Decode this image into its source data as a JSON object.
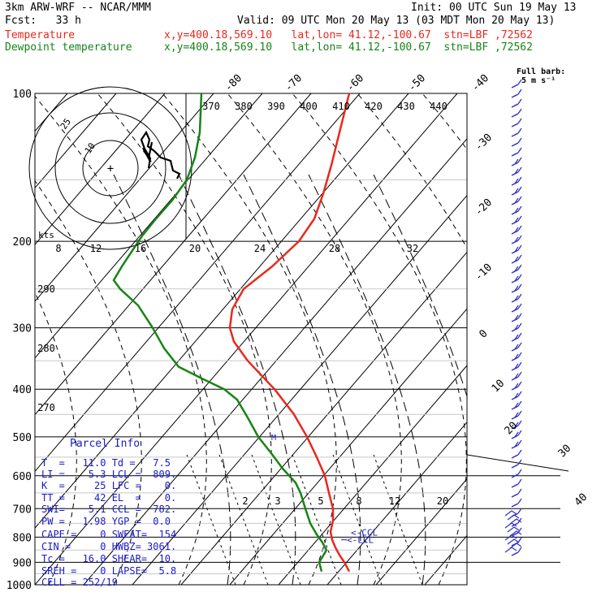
{
  "header": {
    "model": "3km ARW-WRF -- NCAR/MMM",
    "init": "Init: 00 UTC Sun 19 May 13",
    "fcst": "Fcst:   33 h",
    "valid": "Valid: 09 UTC Mon 20 May 13 (03 MDT Mon 20 May 13)",
    "temp_label": "Temperature",
    "temp_info": "x,y=400.18,569.10   lat,lon= 41.12,-100.67  stn=LBF ,72562",
    "dew_label": "Dewpoint temperature",
    "dew_info": "x,y=400.18,569.10   lat,lon= 41.12,-100.67  stn=LBF ,72562",
    "barb_key_1": "Full barb:",
    "barb_key_2": "5 m s⁻¹"
  },
  "colors": {
    "temperature": "#e8281e",
    "dewpoint": "#168416",
    "parcel": "#1a1ac8",
    "barb": "#3434c8",
    "hodograph": "#000000"
  },
  "parcel_info": {
    "title": "Parcel Info",
    "rows": [
      "T  =   11.0 Td =   7.5",
      "LI =    5.3 LCL =  809.",
      "K  =     25 LFC =    0.",
      "TT =     42 EL  =    0.",
      "SWI=    5.1 CCL =  782.",
      "PW =   1.98 YGP =  0.0",
      "CAPE =    0 SWEAT=  154",
      "CIN =     0 HWBZ= 3061.",
      "Tc =   16.0 SHEAR=  10.",
      "SREH =    0 LAPSE=  5.8",
      "CELL = 252/19"
    ]
  },
  "hodograph": {
    "unit_label": "kts",
    "ring_labels": [
      "25",
      "10"
    ]
  },
  "markers": {
    "lcl": "<-LCL",
    "ccl": "<-CCL",
    "ml": "M"
  },
  "chart_data": {
    "type": "line",
    "title": "",
    "xlabel": "",
    "ylabel": "",
    "y_scale": "log pressure (hPa)",
    "ylim": [
      1000,
      100
    ],
    "pressure_ticks": [
      100,
      200,
      300,
      400,
      500,
      600,
      700,
      800,
      900,
      1000
    ],
    "isotherm_labels_top": [
      -80,
      -70,
      -60,
      -50,
      -40
    ],
    "isotherm_labels_right": [
      -30,
      -20,
      -10,
      0,
      10,
      20,
      30,
      40
    ],
    "theta_labels": [
      370,
      380,
      390,
      400,
      410,
      420,
      430,
      440
    ],
    "theta_labels_left": [
      290,
      280,
      270
    ],
    "hodo_speed_labels": [
      8,
      12,
      16,
      20,
      24,
      28,
      32
    ],
    "mixing_ratio_labels": [
      2,
      3,
      5,
      8,
      12,
      20
    ],
    "series": [
      {
        "name": "Temperature",
        "points": [
          {
            "p": 940,
            "x": 430
          },
          {
            "p": 900,
            "x": 424
          },
          {
            "p": 870,
            "x": 418
          },
          {
            "p": 840,
            "x": 413
          },
          {
            "p": 810,
            "x": 409
          },
          {
            "p": 780,
            "x": 407
          },
          {
            "p": 740,
            "x": 410
          },
          {
            "p": 700,
            "x": 410
          },
          {
            "p": 650,
            "x": 405
          },
          {
            "p": 600,
            "x": 400
          },
          {
            "p": 550,
            "x": 390
          },
          {
            "p": 500,
            "x": 378
          },
          {
            "p": 450,
            "x": 362
          },
          {
            "p": 400,
            "x": 338
          },
          {
            "p": 350,
            "x": 305
          },
          {
            "p": 320,
            "x": 288
          },
          {
            "p": 300,
            "x": 283
          },
          {
            "p": 275,
            "x": 286
          },
          {
            "p": 250,
            "x": 300
          },
          {
            "p": 225,
            "x": 335
          },
          {
            "p": 200,
            "x": 368
          },
          {
            "p": 180,
            "x": 387
          },
          {
            "p": 160,
            "x": 398
          },
          {
            "p": 140,
            "x": 408
          },
          {
            "p": 120,
            "x": 418
          },
          {
            "p": 100,
            "x": 430
          }
        ]
      },
      {
        "name": "Dewpoint temperature",
        "points": [
          {
            "p": 940,
            "x": 396
          },
          {
            "p": 900,
            "x": 393
          },
          {
            "p": 850,
            "x": 402
          },
          {
            "p": 820,
            "x": 397
          },
          {
            "p": 790,
            "x": 390
          },
          {
            "p": 750,
            "x": 382
          },
          {
            "p": 700,
            "x": 376
          },
          {
            "p": 650,
            "x": 370
          },
          {
            "p": 620,
            "x": 364
          },
          {
            "p": 580,
            "x": 348
          },
          {
            "p": 540,
            "x": 334
          },
          {
            "p": 500,
            "x": 318
          },
          {
            "p": 460,
            "x": 306
          },
          {
            "p": 420,
            "x": 292
          },
          {
            "p": 400,
            "x": 276
          },
          {
            "p": 380,
            "x": 248
          },
          {
            "p": 360,
            "x": 220
          },
          {
            "p": 330,
            "x": 202
          },
          {
            "p": 300,
            "x": 188
          },
          {
            "p": 270,
            "x": 170
          },
          {
            "p": 250,
            "x": 148
          },
          {
            "p": 240,
            "x": 140
          },
          {
            "p": 225,
            "x": 150
          },
          {
            "p": 210,
            "x": 162
          },
          {
            "p": 195,
            "x": 175
          },
          {
            "p": 180,
            "x": 192
          },
          {
            "p": 165,
            "x": 212
          },
          {
            "p": 150,
            "x": 230
          },
          {
            "p": 135,
            "x": 240
          },
          {
            "p": 120,
            "x": 246
          },
          {
            "p": 100,
            "x": 248
          }
        ]
      }
    ]
  }
}
